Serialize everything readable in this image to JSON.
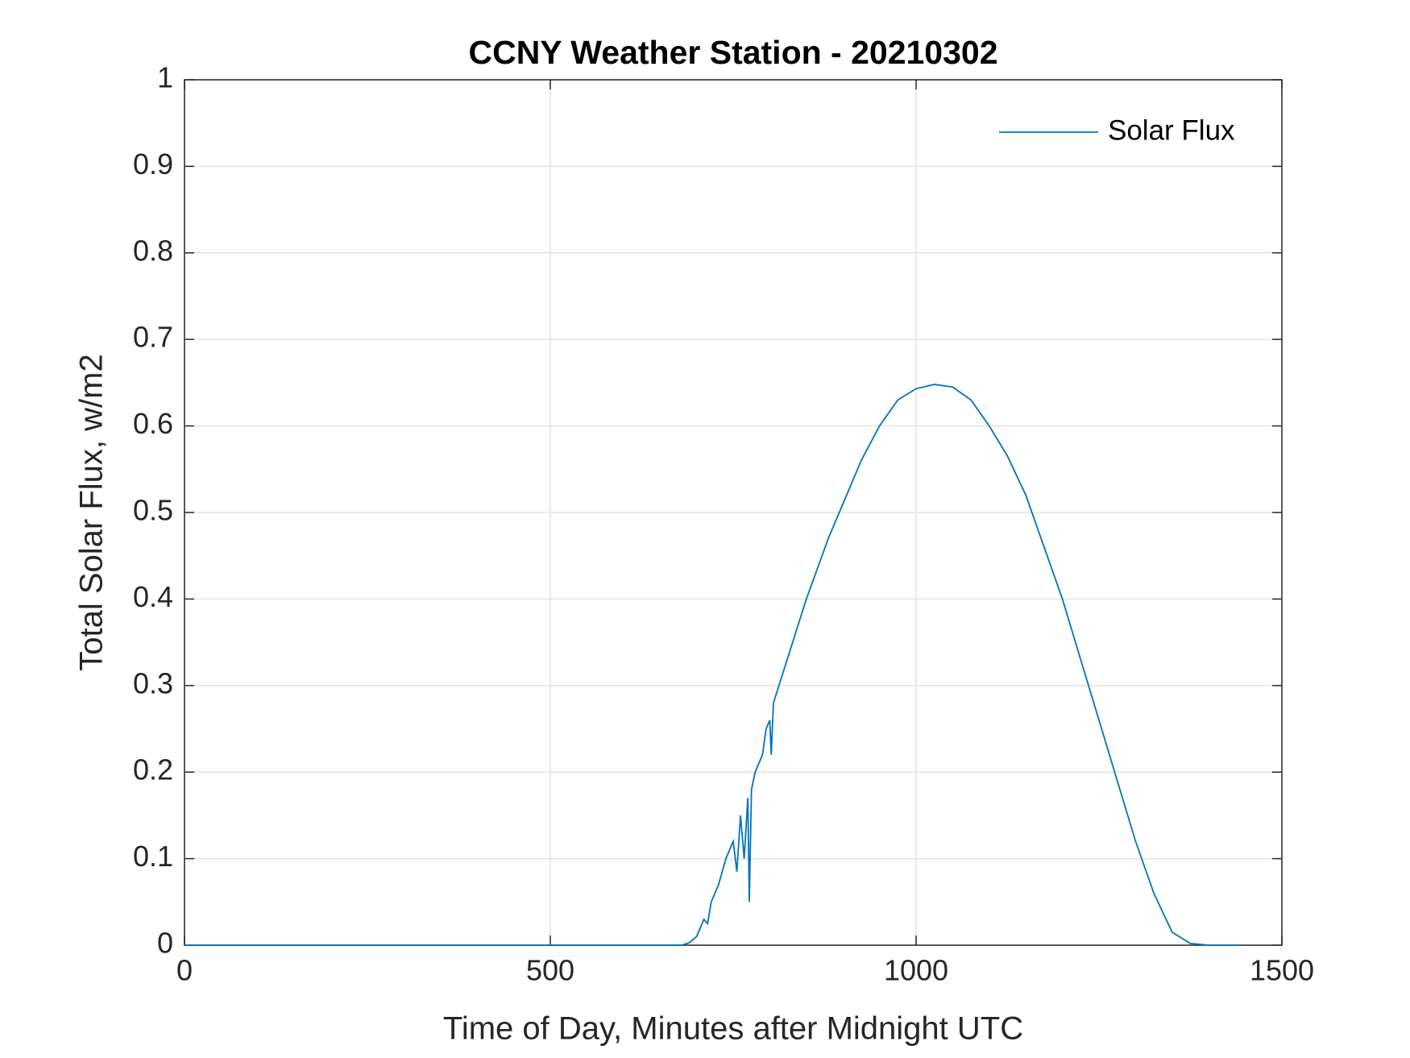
{
  "chart_data": {
    "type": "line",
    "title": "CCNY Weather Station - 20210302",
    "x_label": "Time of Day, Minutes after Midnight UTC",
    "y_label": "Total Solar Flux, w/m2",
    "x": [
      0,
      300,
      600,
      680,
      690,
      700,
      710,
      715,
      720,
      730,
      740,
      750,
      755,
      760,
      765,
      770,
      772,
      775,
      780,
      790,
      795,
      800,
      802,
      805,
      820,
      850,
      880,
      900,
      925,
      950,
      975,
      1000,
      1025,
      1050,
      1075,
      1100,
      1125,
      1150,
      1175,
      1200,
      1225,
      1250,
      1275,
      1300,
      1325,
      1350,
      1375,
      1400,
      1440
    ],
    "series": [
      {
        "name": "Solar Flux",
        "color": "#0072bd",
        "values": [
          0,
          0,
          0,
          0,
          0.003,
          0.01,
          0.03,
          0.025,
          0.05,
          0.07,
          0.1,
          0.12,
          0.085,
          0.15,
          0.1,
          0.17,
          0.05,
          0.18,
          0.2,
          0.22,
          0.25,
          0.26,
          0.22,
          0.28,
          0.32,
          0.4,
          0.47,
          0.51,
          0.56,
          0.6,
          0.63,
          0.643,
          0.648,
          0.645,
          0.63,
          0.6,
          0.565,
          0.52,
          0.46,
          0.4,
          0.33,
          0.26,
          0.19,
          0.12,
          0.06,
          0.015,
          0.002,
          0,
          0
        ]
      }
    ],
    "xlim": [
      0,
      1500
    ],
    "xticks": [
      0,
      500,
      1000,
      1500
    ],
    "ylim": [
      0,
      1
    ],
    "yticks": [
      0,
      0.1,
      0.2,
      0.3,
      0.4,
      0.5,
      0.6,
      0.7,
      0.8,
      0.9,
      1
    ],
    "grid": true,
    "legend": "top-right"
  }
}
